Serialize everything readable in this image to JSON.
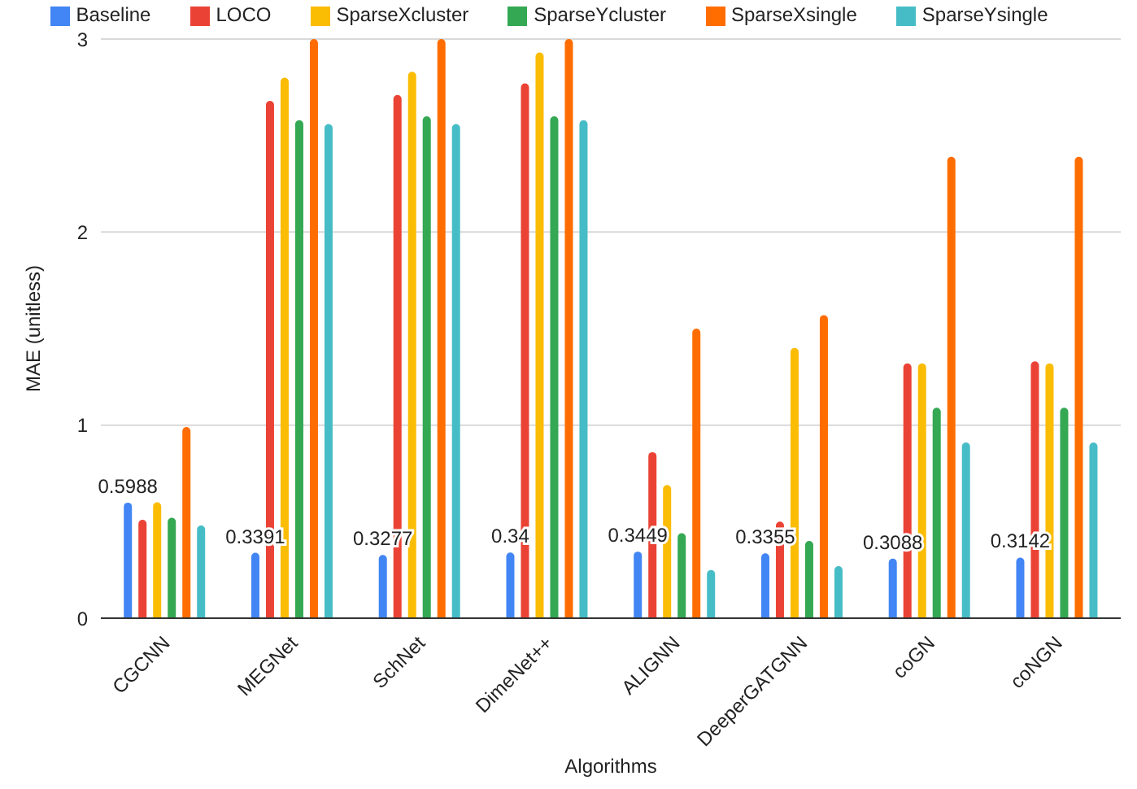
{
  "chart_data": {
    "type": "bar",
    "xlabel": "Algorithms",
    "ylabel": "MAE (unitless)",
    "categories": [
      "CGCNN",
      "MEGNet",
      "SchNet",
      "DimeNet++",
      "ALIGNN",
      "DeeperGATGNN",
      "coGN",
      "coNGN"
    ],
    "series": [
      {
        "name": "Baseline",
        "color": "#4285f4",
        "values": [
          0.5988,
          0.3391,
          0.3277,
          0.34,
          0.3449,
          0.3355,
          0.3088,
          0.3142
        ],
        "value_labels": [
          "0.5988",
          "0.3391",
          "0.3277",
          "0.34",
          "0.3449",
          "0.3355",
          "0.3088",
          "0.3142"
        ]
      },
      {
        "name": "LOCO",
        "color": "#ea4335",
        "values": [
          0.51,
          2.68,
          2.71,
          2.77,
          0.86,
          0.5,
          1.32,
          1.33
        ]
      },
      {
        "name": "SparseXcluster",
        "color": "#fbbc04",
        "values": [
          0.6,
          2.8,
          2.83,
          2.93,
          0.69,
          1.4,
          1.32,
          1.32
        ]
      },
      {
        "name": "SparseYcluster",
        "color": "#34a853",
        "values": [
          0.52,
          2.58,
          2.6,
          2.6,
          0.44,
          0.4,
          1.09,
          1.09
        ]
      },
      {
        "name": "SparseXsingle",
        "color": "#ff6d01",
        "values": [
          0.99,
          3,
          3,
          3,
          1.5,
          1.57,
          2.39,
          2.39
        ]
      },
      {
        "name": "SparseYsingle",
        "color": "#46bdc6",
        "values": [
          0.48,
          2.56,
          2.56,
          2.58,
          0.25,
          0.27,
          0.91,
          0.91
        ]
      }
    ],
    "ylim": [
      0,
      3
    ],
    "yticks": [
      0,
      1,
      2,
      3
    ],
    "grid": "y",
    "legend": "top"
  }
}
